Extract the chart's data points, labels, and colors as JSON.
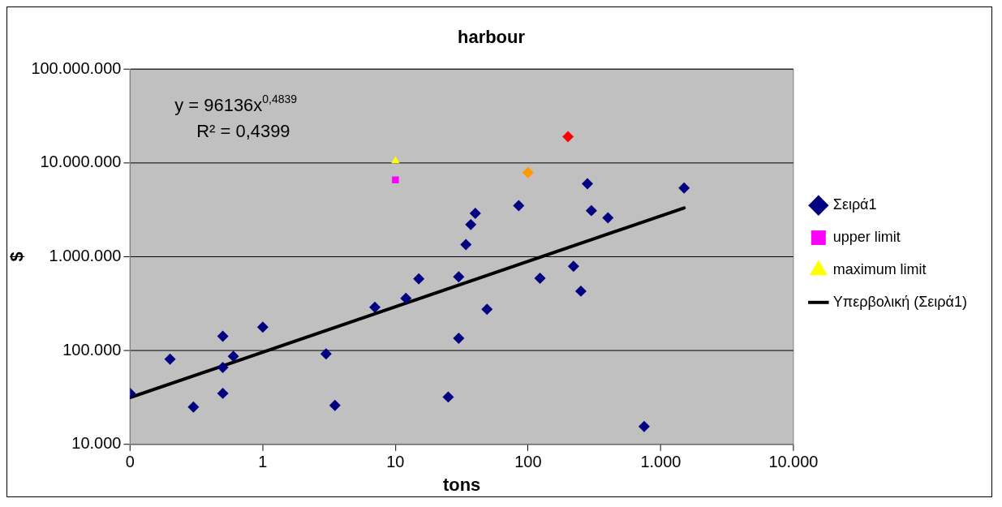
{
  "chart_data": {
    "type": "scatter",
    "title": "harbour",
    "xlabel": "tons",
    "ylabel": "$",
    "log": "xy",
    "grid": "y",
    "legend": "right",
    "xlim": [
      0.1,
      10000
    ],
    "xticks": [
      {
        "value": 0.1,
        "label": "0"
      },
      1,
      10,
      100,
      {
        "value": 1000,
        "label": "1.000"
      },
      {
        "value": 10000,
        "label": "10.000"
      }
    ],
    "ylim": [
      10000,
      100000000
    ],
    "yticks": [
      {
        "value": 10000,
        "label": "10.000"
      },
      {
        "value": 100000,
        "label": "100.000"
      },
      {
        "value": 1000000,
        "label": "1.000.000"
      },
      {
        "value": 10000000,
        "label": "10.000.000"
      },
      {
        "value": 100000000,
        "label": "100.000.000"
      }
    ],
    "annotations": [
      "y = 96136x$^{0,4839}$",
      "R² = 0,4399"
    ],
    "series": [
      {
        "name": "Σειρά1",
        "color": "#000080",
        "marker": "diamond",
        "x": [
          0.1,
          0.2,
          0.3,
          0.5,
          0.5,
          0.6,
          0.5,
          1,
          3,
          3.5,
          7,
          12,
          15,
          25,
          30,
          30,
          34,
          37,
          40,
          49,
          85,
          123,
          220,
          250,
          280,
          300,
          400,
          750,
          1500
        ],
        "values": [
          35000,
          81000,
          25000,
          142000,
          66000,
          87000,
          35000,
          178000,
          92000,
          26000,
          290000,
          360000,
          580000,
          32000,
          610000,
          135000,
          1350000,
          2200000,
          2900000,
          275000,
          3500000,
          590000,
          790000,
          430000,
          6000000,
          3100000,
          2600000,
          15500,
          5400000
        ]
      },
      {
        "name": "upper limit",
        "color": "#ff00ff",
        "marker": "square",
        "x": [
          10
        ],
        "values": [
          6600000
        ]
      },
      {
        "name": "maximum limit",
        "color": "#ffff00",
        "marker": "triangle",
        "x": [
          10
        ],
        "values": [
          10500000
        ]
      },
      {
        "color": "#ff9900",
        "marker": "diamond",
        "x": [
          100
        ],
        "values": [
          7900000
        ]
      },
      {
        "color": "#ff0000",
        "marker": "diamond",
        "x": [
          200
        ],
        "values": [
          19000000
        ]
      },
      {
        "name": "Υπερβολική (Σειρά1)",
        "type": "line",
        "color": "#000000",
        "marker": "none",
        "x": [
          0.1,
          1500
        ],
        "values": [
          31560,
          3310000
        ]
      }
    ]
  }
}
